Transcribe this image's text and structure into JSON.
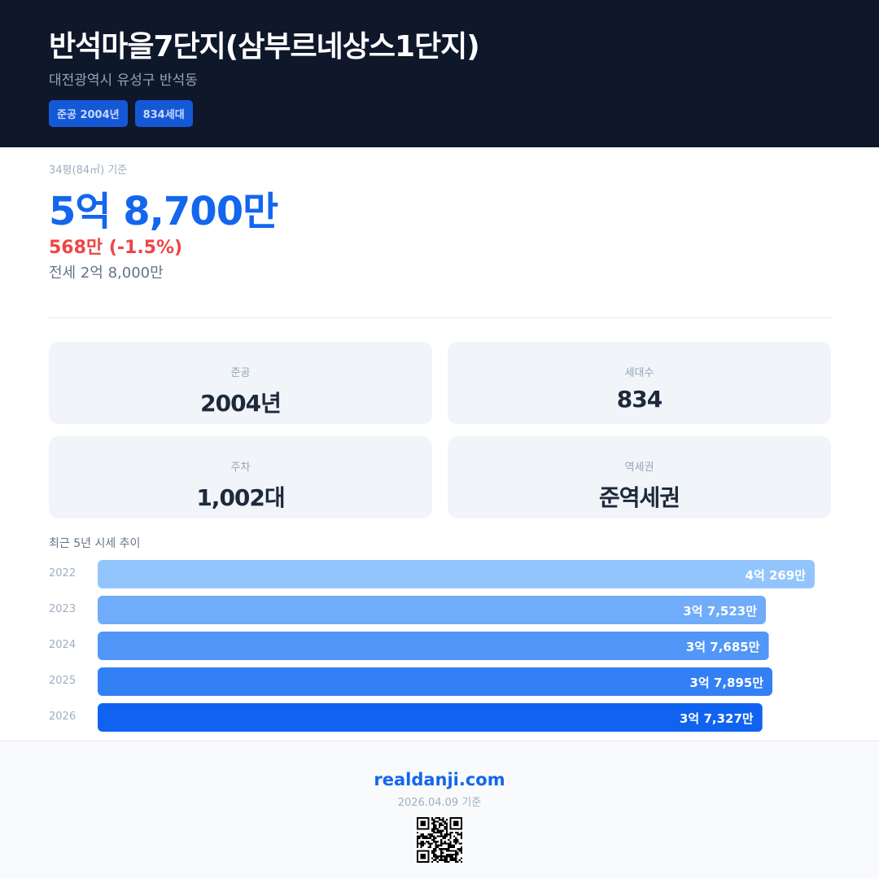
{
  "header": {
    "title": "반석마을7단지(삼부르네상스1단지)",
    "address": "대전광역시 유성구 반석동",
    "badges": [
      "준공 2004년",
      "834세대"
    ]
  },
  "price": {
    "basis": "34평(84㎡) 기준",
    "sale": "5억 8,700만",
    "change": "568만 (-1.5%)",
    "jeonse": "전세 2억 8,000만",
    "change_color": "#ef4444",
    "accent": "#1366ee"
  },
  "stats": [
    {
      "label": "준공",
      "value": "2004년"
    },
    {
      "label": "세대수",
      "value": "834"
    },
    {
      "label": "주차",
      "value": "1,002대"
    },
    {
      "label": "역세권",
      "value": "준역세권"
    }
  ],
  "chart_data": {
    "type": "bar",
    "orientation": "horizontal",
    "title": "최근 5년 시세 추이",
    "categories": [
      "2022",
      "2023",
      "2024",
      "2025",
      "2026"
    ],
    "values": [
      40269,
      37523,
      37685,
      37895,
      37327
    ],
    "labels": [
      "4억 269만",
      "3억 7,523만",
      "3억 7,685만",
      "3억 7,895만",
      "3억 7,327만"
    ],
    "unit": "만원",
    "colors": [
      "#93c5fd",
      "#70acf9",
      "#5296f7",
      "#3380f5",
      "#0f63f0"
    ]
  },
  "footer": {
    "site": "realdanji.com",
    "date": "2026.04.09 기준"
  }
}
